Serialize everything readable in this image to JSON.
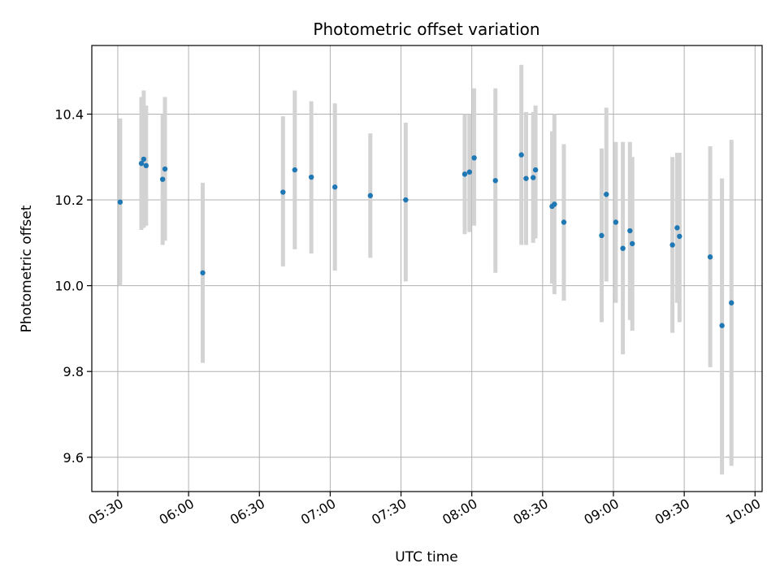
{
  "chart_data": {
    "type": "scatter",
    "title": "Photometric offset variation",
    "xlabel": "UTC time",
    "ylabel": "Photometric offset",
    "x_tick_labels": [
      "05:30",
      "06:00",
      "06:30",
      "07:00",
      "07:30",
      "08:00",
      "08:30",
      "09:00",
      "09:30",
      "10:00"
    ],
    "y_ticks": [
      9.6,
      9.8,
      10.0,
      10.2,
      10.4
    ],
    "y_tick_labels": [
      "9.6",
      "9.8",
      "10.0",
      "10.2",
      "10.4"
    ],
    "xlim": [
      "05:19",
      "10:03"
    ],
    "ylim": [
      9.52,
      10.56
    ],
    "grid": true,
    "point_color": "#1f77b4",
    "errorbar_color": "#d3d3d3",
    "points": [
      {
        "x": "05:31",
        "y": 10.195,
        "low": 10.0,
        "high": 10.39
      },
      {
        "x": "05:40",
        "y": 10.285,
        "low": 10.13,
        "high": 10.44
      },
      {
        "x": "05:41",
        "y": 10.295,
        "low": 10.135,
        "high": 10.455
      },
      {
        "x": "05:42",
        "y": 10.28,
        "low": 10.14,
        "high": 10.42
      },
      {
        "x": "05:49",
        "y": 10.248,
        "low": 10.095,
        "high": 10.4
      },
      {
        "x": "05:50",
        "y": 10.272,
        "low": 10.105,
        "high": 10.44
      },
      {
        "x": "06:06",
        "y": 10.03,
        "low": 9.82,
        "high": 10.24
      },
      {
        "x": "06:40",
        "y": 10.218,
        "low": 10.045,
        "high": 10.395
      },
      {
        "x": "06:45",
        "y": 10.27,
        "low": 10.085,
        "high": 10.455
      },
      {
        "x": "06:52",
        "y": 10.253,
        "low": 10.075,
        "high": 10.43
      },
      {
        "x": "07:02",
        "y": 10.23,
        "low": 10.035,
        "high": 10.425
      },
      {
        "x": "07:17",
        "y": 10.21,
        "low": 10.065,
        "high": 10.355
      },
      {
        "x": "07:32",
        "y": 10.2,
        "low": 10.01,
        "high": 10.38
      },
      {
        "x": "07:57",
        "y": 10.26,
        "low": 10.12,
        "high": 10.4
      },
      {
        "x": "07:59",
        "y": 10.265,
        "low": 10.125,
        "high": 10.4
      },
      {
        "x": "08:01",
        "y": 10.298,
        "low": 10.14,
        "high": 10.46
      },
      {
        "x": "08:10",
        "y": 10.245,
        "low": 10.03,
        "high": 10.46
      },
      {
        "x": "08:21",
        "y": 10.305,
        "low": 10.095,
        "high": 10.515
      },
      {
        "x": "08:23",
        "y": 10.25,
        "low": 10.095,
        "high": 10.405
      },
      {
        "x": "08:26",
        "y": 10.252,
        "low": 10.1,
        "high": 10.405
      },
      {
        "x": "08:27",
        "y": 10.27,
        "low": 10.11,
        "high": 10.42
      },
      {
        "x": "08:34",
        "y": 10.185,
        "low": 10.005,
        "high": 10.36
      },
      {
        "x": "08:35",
        "y": 10.19,
        "low": 9.98,
        "high": 10.4
      },
      {
        "x": "08:39",
        "y": 10.148,
        "low": 9.965,
        "high": 10.33
      },
      {
        "x": "08:55",
        "y": 10.117,
        "low": 9.915,
        "high": 10.32
      },
      {
        "x": "08:57",
        "y": 10.213,
        "low": 10.01,
        "high": 10.415
      },
      {
        "x": "09:01",
        "y": 10.148,
        "low": 9.96,
        "high": 10.335
      },
      {
        "x": "09:04",
        "y": 10.087,
        "low": 9.84,
        "high": 10.335
      },
      {
        "x": "09:07",
        "y": 10.128,
        "low": 9.92,
        "high": 10.335
      },
      {
        "x": "09:08",
        "y": 10.098,
        "low": 9.895,
        "high": 10.3
      },
      {
        "x": "09:25",
        "y": 10.095,
        "low": 9.89,
        "high": 10.3
      },
      {
        "x": "09:27",
        "y": 10.135,
        "low": 9.96,
        "high": 10.31
      },
      {
        "x": "09:28",
        "y": 10.115,
        "low": 9.915,
        "high": 10.31
      },
      {
        "x": "09:41",
        "y": 10.067,
        "low": 9.81,
        "high": 10.325
      },
      {
        "x": "09:46",
        "y": 9.907,
        "low": 9.56,
        "high": 10.25
      },
      {
        "x": "09:50",
        "y": 9.96,
        "low": 9.58,
        "high": 10.34
      }
    ]
  }
}
